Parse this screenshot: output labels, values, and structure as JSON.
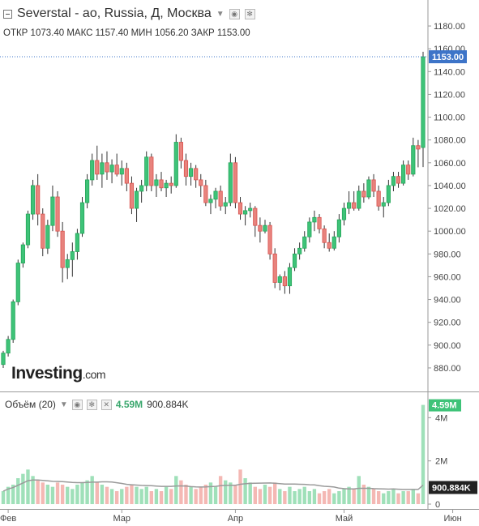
{
  "header": {
    "title": "Severstal - ао, Russia, Д, Москва",
    "open_label": "ОТКР",
    "open": "1073.40",
    "high_label": "МАКС",
    "high": "1157.40",
    "low_label": "МИН",
    "low": "1056.20",
    "close_label": "ЗАКР",
    "close": "1153.00"
  },
  "logo": {
    "brand": "Investing",
    "domain": ".com"
  },
  "volume": {
    "title": "Объём (20)",
    "current": "4.59M",
    "average": "900.884K"
  },
  "colors": {
    "up": "#26a65b",
    "up_fill": "#3ec378",
    "down": "#d9534f",
    "down_fill": "#e8837d",
    "price_tag": "#3d74c8",
    "ma": "#9a9a9a",
    "vol_up": "#9fe0b9",
    "vol_down": "#f4b8b4"
  },
  "chart_data": {
    "type": "candlestick",
    "price_axis": {
      "ticks": [
        "1180.00",
        "1160.00",
        "1140.00",
        "1120.00",
        "1100.00",
        "1080.00",
        "1060.00",
        "1040.00",
        "1020.00",
        "1000.00",
        "980.00",
        "960.00",
        "940.00",
        "920.00",
        "900.00",
        "880.00"
      ],
      "ylim": [
        870,
        1190
      ]
    },
    "last_price": "1153.00",
    "volume_axis": {
      "ticks": [
        "4M",
        "2M",
        "0"
      ],
      "ylim": [
        0,
        4800000
      ]
    },
    "x_labels": [
      "Фев",
      "Мар",
      "Апр",
      "Май",
      "Июн"
    ],
    "x_label_index": [
      1,
      24,
      47,
      69,
      91
    ],
    "candles": [
      [
        883,
        895,
        880,
        893
      ],
      [
        893,
        908,
        890,
        905
      ],
      [
        905,
        940,
        902,
        938
      ],
      [
        938,
        975,
        935,
        972
      ],
      [
        972,
        990,
        968,
        988
      ],
      [
        988,
        1018,
        985,
        1015
      ],
      [
        1015,
        1045,
        1010,
        1040
      ],
      [
        1040,
        1050,
        1005,
        1015
      ],
      [
        1015,
        1020,
        978,
        985
      ],
      [
        985,
        1010,
        980,
        1005
      ],
      [
        1005,
        1040,
        1000,
        1030
      ],
      [
        1030,
        1035,
        995,
        1000
      ],
      [
        1000,
        1008,
        955,
        968
      ],
      [
        968,
        980,
        958,
        975
      ],
      [
        975,
        990,
        960,
        982
      ],
      [
        982,
        1002,
        975,
        998
      ],
      [
        998,
        1030,
        995,
        1025
      ],
      [
        1025,
        1050,
        1020,
        1045
      ],
      [
        1045,
        1068,
        1040,
        1062
      ],
      [
        1062,
        1075,
        1045,
        1050
      ],
      [
        1050,
        1068,
        1038,
        1060
      ],
      [
        1060,
        1070,
        1045,
        1052
      ],
      [
        1052,
        1063,
        1042,
        1058
      ],
      [
        1058,
        1068,
        1048,
        1050
      ],
      [
        1050,
        1062,
        1040,
        1055
      ],
      [
        1055,
        1060,
        1035,
        1042
      ],
      [
        1042,
        1048,
        1015,
        1020
      ],
      [
        1020,
        1038,
        1008,
        1035
      ],
      [
        1035,
        1045,
        1025,
        1040
      ],
      [
        1040,
        1070,
        1035,
        1065
      ],
      [
        1065,
        1068,
        1035,
        1040
      ],
      [
        1040,
        1050,
        1030,
        1045
      ],
      [
        1045,
        1052,
        1035,
        1038
      ],
      [
        1038,
        1045,
        1030,
        1042
      ],
      [
        1042,
        1048,
        1033,
        1040
      ],
      [
        1040,
        1085,
        1038,
        1078
      ],
      [
        1078,
        1082,
        1055,
        1062
      ],
      [
        1062,
        1068,
        1040,
        1048
      ],
      [
        1048,
        1060,
        1040,
        1055
      ],
      [
        1055,
        1058,
        1038,
        1045
      ],
      [
        1045,
        1050,
        1030,
        1040
      ],
      [
        1040,
        1045,
        1022,
        1025
      ],
      [
        1025,
        1032,
        1015,
        1028
      ],
      [
        1028,
        1038,
        1020,
        1035
      ],
      [
        1035,
        1040,
        1018,
        1022
      ],
      [
        1022,
        1030,
        1015,
        1025
      ],
      [
        1025,
        1068,
        1022,
        1060
      ],
      [
        1060,
        1065,
        1020,
        1025
      ],
      [
        1025,
        1030,
        1010,
        1015
      ],
      [
        1015,
        1022,
        1005,
        1018
      ],
      [
        1018,
        1025,
        1012,
        1020
      ],
      [
        1020,
        1022,
        995,
        1005
      ],
      [
        1005,
        1012,
        990,
        1000
      ],
      [
        1000,
        1010,
        998,
        1005
      ],
      [
        1005,
        1008,
        975,
        980
      ],
      [
        980,
        985,
        950,
        955
      ],
      [
        955,
        962,
        948,
        960
      ],
      [
        960,
        965,
        945,
        952
      ],
      [
        952,
        972,
        945,
        968
      ],
      [
        968,
        985,
        965,
        980
      ],
      [
        980,
        990,
        975,
        985
      ],
      [
        985,
        1000,
        982,
        995
      ],
      [
        995,
        1012,
        990,
        1008
      ],
      [
        1008,
        1018,
        1000,
        1012
      ],
      [
        1012,
        1015,
        998,
        1002
      ],
      [
        1002,
        1005,
        985,
        990
      ],
      [
        990,
        998,
        982,
        985
      ],
      [
        985,
        1000,
        983,
        995
      ],
      [
        995,
        1015,
        990,
        1010
      ],
      [
        1010,
        1025,
        1005,
        1020
      ],
      [
        1020,
        1035,
        1015,
        1025
      ],
      [
        1025,
        1035,
        1018,
        1020
      ],
      [
        1020,
        1040,
        1018,
        1035
      ],
      [
        1035,
        1042,
        1025,
        1030
      ],
      [
        1030,
        1048,
        1028,
        1045
      ],
      [
        1045,
        1050,
        1030,
        1035
      ],
      [
        1035,
        1040,
        1018,
        1022
      ],
      [
        1022,
        1030,
        1012,
        1025
      ],
      [
        1025,
        1045,
        1022,
        1040
      ],
      [
        1040,
        1052,
        1035,
        1048
      ],
      [
        1048,
        1052,
        1038,
        1042
      ],
      [
        1042,
        1062,
        1040,
        1058
      ],
      [
        1058,
        1062,
        1045,
        1050
      ],
      [
        1050,
        1082,
        1048,
        1075
      ],
      [
        1075,
        1080,
        1056,
        1072
      ],
      [
        1073.4,
        1157.4,
        1056.2,
        1153
      ]
    ],
    "volumes": [
      0.6,
      0.8,
      0.9,
      1.2,
      1.4,
      1.6,
      1.3,
      1.1,
      1.0,
      0.9,
      0.8,
      1.0,
      0.9,
      0.8,
      0.7,
      0.9,
      1.0,
      1.1,
      1.3,
      1.0,
      0.9,
      0.8,
      0.7,
      0.6,
      0.7,
      0.8,
      0.9,
      0.8,
      0.7,
      0.8,
      0.6,
      0.7,
      0.6,
      0.8,
      0.7,
      1.3,
      1.1,
      0.9,
      0.8,
      0.7,
      0.8,
      0.9,
      1.0,
      0.8,
      1.3,
      1.1,
      1.0,
      0.9,
      1.6,
      1.2,
      1.0,
      0.8,
      0.7,
      0.9,
      0.8,
      1.0,
      0.7,
      0.6,
      0.8,
      0.6,
      0.7,
      0.8,
      0.6,
      0.7,
      0.5,
      0.6,
      0.7,
      0.5,
      0.6,
      0.7,
      0.8,
      0.7,
      1.3,
      0.9,
      0.8,
      0.7,
      0.6,
      0.5,
      0.6,
      0.7,
      0.5,
      0.6,
      0.6,
      0.7,
      0.5,
      4.59
    ],
    "volume_ma_last": "900.884K"
  }
}
